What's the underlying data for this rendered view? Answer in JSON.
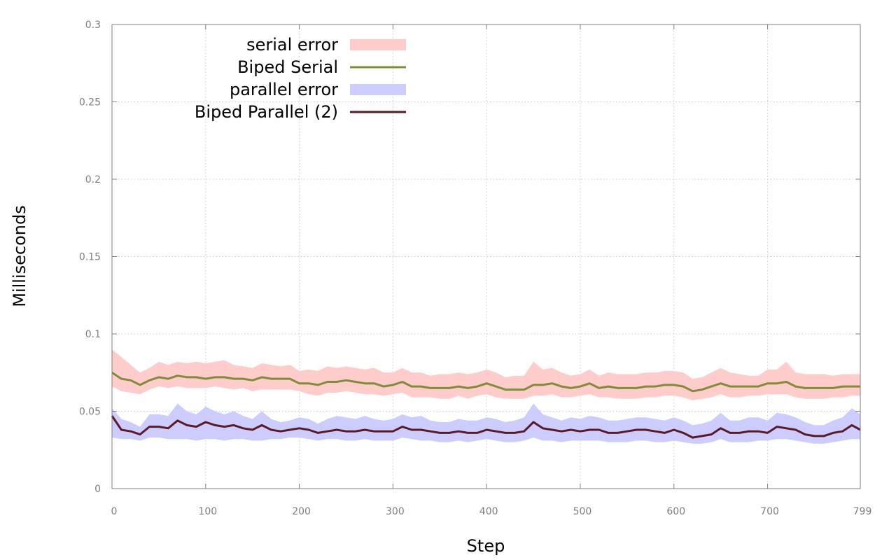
{
  "chart_data": {
    "type": "line",
    "title": "",
    "xlabel": "Step",
    "ylabel": "Milliseconds",
    "xlim": [
      0,
      799
    ],
    "ylim": [
      0,
      0.3
    ],
    "x_ticks": [
      0,
      100,
      200,
      300,
      400,
      500,
      600,
      700,
      799
    ],
    "y_ticks": [
      0,
      0.05,
      0.1,
      0.15,
      0.2,
      0.25,
      0.3
    ],
    "y_tick_labels": [
      "0",
      "0.05",
      "0.1",
      "0.15",
      "0.2",
      "0.25",
      "0.3"
    ],
    "grid": true,
    "legend_position": "top-left",
    "series": [
      {
        "name": "Biped Serial",
        "style": "line",
        "color": "#7f8c3a",
        "x": [
          0,
          10,
          20,
          30,
          40,
          50,
          60,
          70,
          80,
          90,
          100,
          110,
          120,
          130,
          140,
          150,
          160,
          170,
          180,
          190,
          200,
          210,
          220,
          230,
          240,
          250,
          260,
          270,
          280,
          290,
          300,
          310,
          320,
          330,
          340,
          350,
          360,
          370,
          380,
          390,
          400,
          410,
          420,
          430,
          440,
          450,
          460,
          470,
          480,
          490,
          500,
          510,
          520,
          530,
          540,
          550,
          560,
          570,
          580,
          590,
          600,
          610,
          620,
          630,
          640,
          650,
          660,
          670,
          680,
          690,
          700,
          710,
          720,
          730,
          740,
          750,
          760,
          770,
          780,
          790,
          799
        ],
        "y": [
          0.075,
          0.071,
          0.07,
          0.067,
          0.07,
          0.072,
          0.071,
          0.073,
          0.072,
          0.072,
          0.071,
          0.072,
          0.072,
          0.071,
          0.071,
          0.07,
          0.072,
          0.071,
          0.071,
          0.071,
          0.068,
          0.068,
          0.067,
          0.069,
          0.069,
          0.07,
          0.069,
          0.068,
          0.068,
          0.066,
          0.067,
          0.069,
          0.066,
          0.066,
          0.065,
          0.065,
          0.065,
          0.066,
          0.065,
          0.066,
          0.068,
          0.066,
          0.064,
          0.064,
          0.064,
          0.067,
          0.067,
          0.068,
          0.066,
          0.065,
          0.066,
          0.068,
          0.065,
          0.066,
          0.065,
          0.065,
          0.065,
          0.066,
          0.066,
          0.067,
          0.067,
          0.066,
          0.063,
          0.064,
          0.066,
          0.068,
          0.066,
          0.066,
          0.066,
          0.066,
          0.068,
          0.068,
          0.069,
          0.066,
          0.065,
          0.065,
          0.065,
          0.065,
          0.066,
          0.066,
          0.066
        ]
      },
      {
        "name": "serial error",
        "style": "band",
        "color": "#ffcccc",
        "x": [
          0,
          10,
          20,
          30,
          40,
          50,
          60,
          70,
          80,
          90,
          100,
          110,
          120,
          130,
          140,
          150,
          160,
          170,
          180,
          190,
          200,
          210,
          220,
          230,
          240,
          250,
          260,
          270,
          280,
          290,
          300,
          310,
          320,
          330,
          340,
          350,
          360,
          370,
          380,
          390,
          400,
          410,
          420,
          430,
          440,
          450,
          460,
          470,
          480,
          490,
          500,
          510,
          520,
          530,
          540,
          550,
          560,
          570,
          580,
          590,
          600,
          610,
          620,
          630,
          640,
          650,
          660,
          670,
          680,
          690,
          700,
          710,
          720,
          730,
          740,
          750,
          760,
          770,
          780,
          790,
          799
        ],
        "lower": [
          0.066,
          0.063,
          0.062,
          0.061,
          0.064,
          0.066,
          0.065,
          0.066,
          0.065,
          0.065,
          0.065,
          0.066,
          0.065,
          0.064,
          0.065,
          0.063,
          0.064,
          0.064,
          0.064,
          0.064,
          0.063,
          0.061,
          0.06,
          0.062,
          0.062,
          0.063,
          0.062,
          0.061,
          0.061,
          0.06,
          0.061,
          0.062,
          0.059,
          0.059,
          0.059,
          0.058,
          0.058,
          0.06,
          0.058,
          0.06,
          0.061,
          0.059,
          0.058,
          0.058,
          0.058,
          0.06,
          0.06,
          0.061,
          0.059,
          0.059,
          0.06,
          0.061,
          0.059,
          0.059,
          0.058,
          0.058,
          0.058,
          0.059,
          0.059,
          0.06,
          0.06,
          0.059,
          0.057,
          0.058,
          0.059,
          0.061,
          0.059,
          0.059,
          0.06,
          0.06,
          0.061,
          0.061,
          0.061,
          0.059,
          0.058,
          0.058,
          0.058,
          0.059,
          0.059,
          0.06,
          0.06
        ],
        "upper": [
          0.09,
          0.085,
          0.08,
          0.075,
          0.078,
          0.082,
          0.08,
          0.082,
          0.081,
          0.082,
          0.081,
          0.082,
          0.083,
          0.08,
          0.079,
          0.078,
          0.081,
          0.08,
          0.079,
          0.08,
          0.076,
          0.077,
          0.076,
          0.079,
          0.078,
          0.079,
          0.078,
          0.077,
          0.078,
          0.075,
          0.075,
          0.078,
          0.075,
          0.075,
          0.073,
          0.074,
          0.074,
          0.075,
          0.074,
          0.075,
          0.077,
          0.075,
          0.072,
          0.073,
          0.073,
          0.082,
          0.077,
          0.078,
          0.075,
          0.073,
          0.074,
          0.077,
          0.073,
          0.075,
          0.074,
          0.074,
          0.074,
          0.075,
          0.075,
          0.076,
          0.076,
          0.075,
          0.071,
          0.072,
          0.075,
          0.078,
          0.075,
          0.074,
          0.073,
          0.073,
          0.077,
          0.077,
          0.082,
          0.075,
          0.074,
          0.074,
          0.074,
          0.073,
          0.074,
          0.074,
          0.074
        ]
      },
      {
        "name": "Biped Parallel (2)",
        "style": "line",
        "color": "#5c1a26",
        "x": [
          0,
          10,
          20,
          30,
          40,
          50,
          60,
          70,
          80,
          90,
          100,
          110,
          120,
          130,
          140,
          150,
          160,
          170,
          180,
          190,
          200,
          210,
          220,
          230,
          240,
          250,
          260,
          270,
          280,
          290,
          300,
          310,
          320,
          330,
          340,
          350,
          360,
          370,
          380,
          390,
          400,
          410,
          420,
          430,
          440,
          450,
          460,
          470,
          480,
          490,
          500,
          510,
          520,
          530,
          540,
          550,
          560,
          570,
          580,
          590,
          600,
          610,
          620,
          630,
          640,
          650,
          660,
          670,
          680,
          690,
          700,
          710,
          720,
          730,
          740,
          750,
          760,
          770,
          780,
          790,
          799
        ],
        "y": [
          0.047,
          0.038,
          0.037,
          0.035,
          0.04,
          0.04,
          0.039,
          0.044,
          0.041,
          0.04,
          0.043,
          0.041,
          0.04,
          0.041,
          0.039,
          0.038,
          0.041,
          0.038,
          0.037,
          0.038,
          0.039,
          0.038,
          0.036,
          0.037,
          0.038,
          0.037,
          0.037,
          0.038,
          0.037,
          0.037,
          0.037,
          0.04,
          0.038,
          0.038,
          0.037,
          0.036,
          0.036,
          0.037,
          0.036,
          0.036,
          0.038,
          0.037,
          0.036,
          0.036,
          0.037,
          0.043,
          0.039,
          0.038,
          0.037,
          0.038,
          0.037,
          0.038,
          0.038,
          0.036,
          0.036,
          0.037,
          0.038,
          0.038,
          0.037,
          0.036,
          0.038,
          0.036,
          0.033,
          0.034,
          0.035,
          0.039,
          0.036,
          0.036,
          0.037,
          0.037,
          0.036,
          0.04,
          0.039,
          0.038,
          0.035,
          0.034,
          0.034,
          0.036,
          0.037,
          0.041,
          0.038
        ]
      },
      {
        "name": "parallel error",
        "style": "band",
        "color": "#ccccff",
        "x": [
          0,
          10,
          20,
          30,
          40,
          50,
          60,
          70,
          80,
          90,
          100,
          110,
          120,
          130,
          140,
          150,
          160,
          170,
          180,
          190,
          200,
          210,
          220,
          230,
          240,
          250,
          260,
          270,
          280,
          290,
          300,
          310,
          320,
          330,
          340,
          350,
          360,
          370,
          380,
          390,
          400,
          410,
          420,
          430,
          440,
          450,
          460,
          470,
          480,
          490,
          500,
          510,
          520,
          530,
          540,
          550,
          560,
          570,
          580,
          590,
          600,
          610,
          620,
          630,
          640,
          650,
          660,
          670,
          680,
          690,
          700,
          710,
          720,
          730,
          740,
          750,
          760,
          770,
          780,
          790,
          799
        ],
        "lower": [
          0.033,
          0.032,
          0.032,
          0.031,
          0.033,
          0.033,
          0.032,
          0.032,
          0.032,
          0.031,
          0.032,
          0.032,
          0.031,
          0.032,
          0.032,
          0.031,
          0.031,
          0.032,
          0.032,
          0.033,
          0.033,
          0.032,
          0.031,
          0.032,
          0.032,
          0.031,
          0.031,
          0.032,
          0.031,
          0.031,
          0.031,
          0.033,
          0.032,
          0.031,
          0.031,
          0.03,
          0.03,
          0.031,
          0.03,
          0.031,
          0.032,
          0.031,
          0.03,
          0.03,
          0.031,
          0.033,
          0.031,
          0.031,
          0.03,
          0.031,
          0.031,
          0.031,
          0.031,
          0.03,
          0.03,
          0.03,
          0.031,
          0.031,
          0.03,
          0.03,
          0.031,
          0.03,
          0.029,
          0.029,
          0.03,
          0.032,
          0.03,
          0.03,
          0.03,
          0.031,
          0.031,
          0.032,
          0.032,
          0.031,
          0.03,
          0.029,
          0.029,
          0.03,
          0.031,
          0.032,
          0.032
        ],
        "upper": [
          0.052,
          0.045,
          0.043,
          0.04,
          0.048,
          0.048,
          0.047,
          0.055,
          0.05,
          0.048,
          0.053,
          0.05,
          0.048,
          0.05,
          0.047,
          0.045,
          0.05,
          0.045,
          0.043,
          0.044,
          0.046,
          0.045,
          0.042,
          0.045,
          0.047,
          0.046,
          0.045,
          0.047,
          0.045,
          0.044,
          0.045,
          0.048,
          0.046,
          0.047,
          0.044,
          0.043,
          0.043,
          0.045,
          0.044,
          0.044,
          0.046,
          0.045,
          0.043,
          0.044,
          0.046,
          0.055,
          0.048,
          0.046,
          0.044,
          0.046,
          0.045,
          0.047,
          0.046,
          0.044,
          0.044,
          0.045,
          0.046,
          0.046,
          0.045,
          0.044,
          0.046,
          0.044,
          0.041,
          0.042,
          0.044,
          0.049,
          0.044,
          0.044,
          0.046,
          0.046,
          0.044,
          0.049,
          0.048,
          0.046,
          0.043,
          0.041,
          0.041,
          0.044,
          0.046,
          0.052,
          0.048
        ]
      }
    ],
    "legend_order": [
      "serial error",
      "Biped Serial",
      "parallel error",
      "Biped Parallel (2)"
    ]
  }
}
